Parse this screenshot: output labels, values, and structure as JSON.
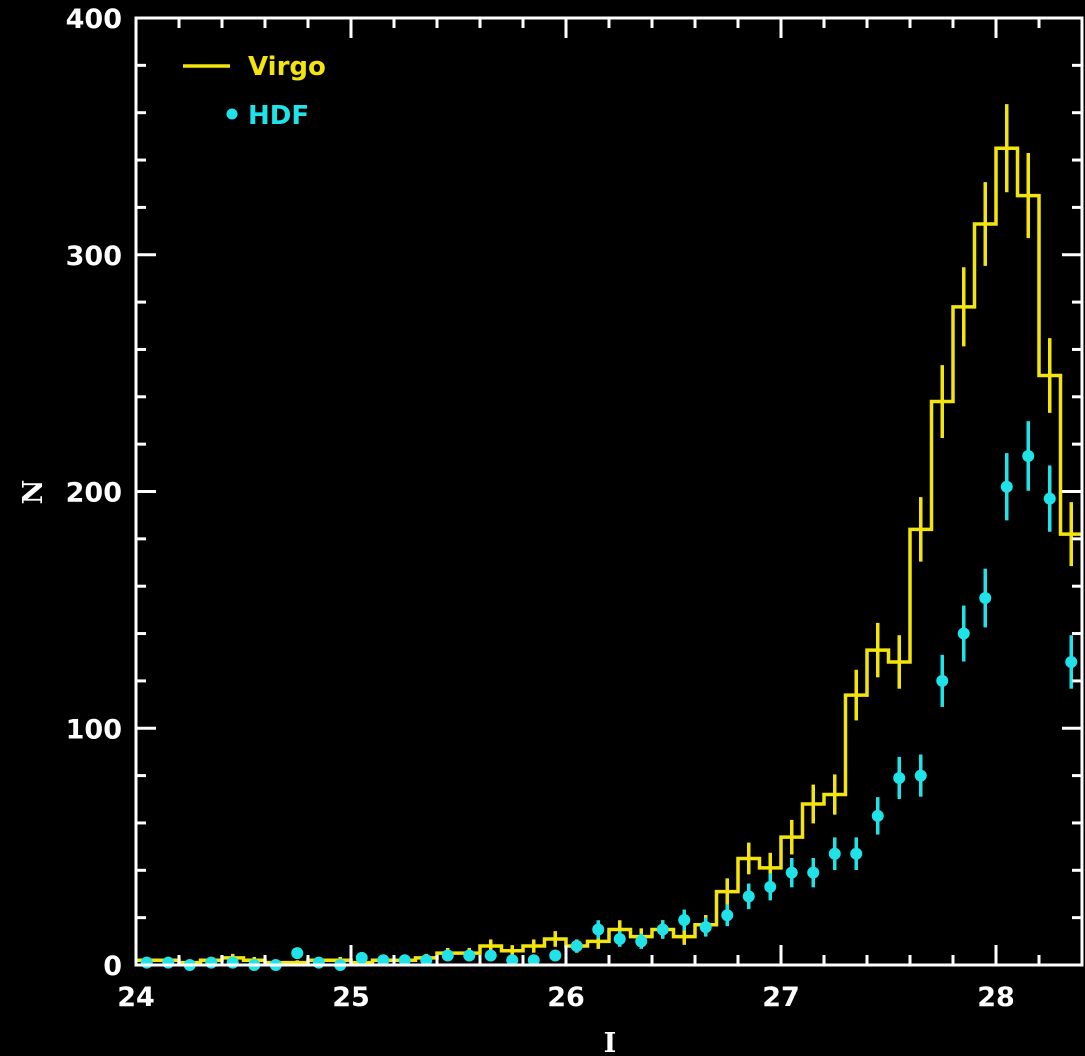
{
  "chart_data": {
    "type": "line",
    "title": "",
    "xlabel": "I",
    "ylabel": "N",
    "xlim": [
      24,
      28.4
    ],
    "ylim": [
      0,
      400
    ],
    "x_ticks": [
      "24",
      "25",
      "26",
      "27",
      "28"
    ],
    "y_ticks": [
      "0",
      "100",
      "200",
      "300",
      "400"
    ],
    "grid": false,
    "legend_position": "top-left",
    "series": [
      {
        "name": "Virgo",
        "style": "step-histogram with error bars",
        "color": "#f2e40c",
        "bin_width": 0.1,
        "x": [
          24.0,
          24.1,
          24.2,
          24.3,
          24.4,
          24.5,
          24.6,
          24.7,
          24.8,
          24.9,
          25.0,
          25.1,
          25.2,
          25.3,
          25.4,
          25.5,
          25.6,
          25.7,
          25.8,
          25.9,
          26.0,
          26.1,
          26.2,
          26.3,
          26.4,
          26.5,
          26.6,
          26.7,
          26.8,
          26.9,
          27.0,
          27.1,
          27.2,
          27.3,
          27.4,
          27.5,
          27.6,
          27.7,
          27.8,
          27.9,
          28.0,
          28.1,
          28.2,
          28.3
        ],
        "y": [
          2,
          2,
          1,
          2,
          3,
          2,
          1,
          1,
          2,
          2,
          1,
          2,
          2,
          3,
          5,
          5,
          8,
          6,
          8,
          11,
          8,
          10,
          15,
          12,
          15,
          12,
          17,
          31,
          45,
          41,
          54,
          68,
          72,
          114,
          133,
          128,
          184,
          238,
          278,
          313,
          345,
          325,
          249,
          182
        ],
        "errors": [
          1.4,
          1.4,
          1,
          1.4,
          1.7,
          1.4,
          1,
          1,
          1.4,
          1.4,
          1,
          1.4,
          1.4,
          1.7,
          2.2,
          2.2,
          2.8,
          2.4,
          2.8,
          3.3,
          2.8,
          3.2,
          3.9,
          3.5,
          3.9,
          3.5,
          4.1,
          5.6,
          6.7,
          6.4,
          7.3,
          8.2,
          8.5,
          10.7,
          11.5,
          11.3,
          13.6,
          15.4,
          16.7,
          17.7,
          18.6,
          18,
          15.8,
          13.5
        ]
      },
      {
        "name": "HDF",
        "style": "points with error bars",
        "color": "#1fe3e8",
        "x": [
          24.05,
          24.15,
          24.25,
          24.35,
          24.45,
          24.55,
          24.65,
          24.75,
          24.85,
          24.95,
          25.05,
          25.15,
          25.25,
          25.35,
          25.45,
          25.55,
          25.65,
          25.75,
          25.85,
          25.95,
          26.05,
          26.15,
          26.25,
          26.35,
          26.45,
          26.55,
          26.65,
          26.75,
          26.85,
          26.95,
          27.05,
          27.15,
          27.25,
          27.35,
          27.45,
          27.55,
          27.65,
          27.75,
          27.85,
          27.95,
          28.05,
          28.15,
          28.25,
          28.35
        ],
        "y": [
          1,
          1,
          0,
          1,
          1,
          0,
          0,
          5,
          1,
          0,
          3,
          2,
          2,
          2,
          4,
          4,
          4,
          2,
          2,
          4,
          8,
          15,
          11,
          10,
          15,
          19,
          16,
          21,
          29,
          33,
          39,
          39,
          47,
          47,
          63,
          79,
          80,
          120,
          140,
          155,
          202,
          215,
          197,
          128
        ],
        "errors": [
          1,
          1,
          0,
          1,
          1,
          0,
          0,
          2.2,
          1,
          0,
          1.7,
          1.4,
          1.4,
          1.4,
          2,
          2,
          2,
          1.4,
          1.4,
          2,
          2.8,
          3.9,
          3.3,
          3.2,
          3.9,
          4.4,
          4,
          4.6,
          5.4,
          5.7,
          6.2,
          6.2,
          6.9,
          6.9,
          7.9,
          8.9,
          8.9,
          11,
          11.8,
          12.4,
          14.2,
          14.7,
          14,
          11.3
        ]
      }
    ]
  },
  "colors": {
    "background": "#000000",
    "axes": "#ffffff",
    "virgo": "#f2e40c",
    "hdf": "#1fe3e8"
  }
}
